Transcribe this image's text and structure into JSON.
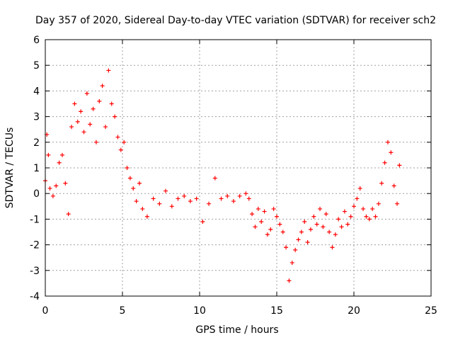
{
  "chart_data": {
    "type": "scatter",
    "title": "Day 357 of 2020, Sidereal Day-to-day VTEC variation (SDTVAR) for receiver sch2",
    "xlabel": "GPS time / hours",
    "ylabel": "SDTVAR / TECUs",
    "xlim": [
      0,
      25
    ],
    "ylim": [
      -4,
      6
    ],
    "xticks": [
      0,
      5,
      10,
      15,
      20,
      25
    ],
    "xtick_labels": [
      "0",
      "5",
      "10",
      "15",
      "20",
      "25"
    ],
    "yticks": [
      -4,
      -3,
      -2,
      -1,
      0,
      1,
      2,
      3,
      4,
      5,
      6
    ],
    "ytick_labels": [
      "-4",
      "-3",
      "-2",
      "-1",
      "0",
      "1",
      "2",
      "3",
      "4",
      "5",
      "6"
    ],
    "grid": true,
    "marker": "+",
    "color": "#ff0000",
    "series": [
      {
        "name": "SDTVAR",
        "x": [
          0.0,
          0.1,
          0.2,
          0.3,
          0.5,
          0.7,
          0.9,
          1.1,
          1.3,
          1.5,
          1.7,
          1.9,
          2.1,
          2.3,
          2.5,
          2.7,
          2.9,
          3.1,
          3.3,
          3.5,
          3.7,
          3.9,
          4.1,
          4.3,
          4.5,
          4.7,
          4.9,
          5.1,
          5.3,
          5.5,
          5.7,
          5.9,
          6.1,
          6.3,
          6.6,
          7.0,
          7.4,
          7.8,
          8.2,
          8.6,
          9.0,
          9.4,
          9.8,
          10.2,
          10.6,
          11.0,
          11.4,
          11.8,
          12.2,
          12.6,
          13.0,
          13.2,
          13.4,
          13.6,
          13.8,
          14.0,
          14.2,
          14.4,
          14.6,
          14.8,
          15.0,
          15.2,
          15.4,
          15.6,
          15.8,
          16.0,
          16.2,
          16.4,
          16.6,
          16.8,
          17.0,
          17.2,
          17.4,
          17.6,
          17.8,
          18.0,
          18.2,
          18.4,
          18.6,
          18.8,
          19.0,
          19.2,
          19.4,
          19.6,
          19.8,
          20.0,
          20.2,
          20.4,
          20.6,
          20.8,
          21.0,
          21.2,
          21.4,
          21.6,
          21.8,
          22.0,
          22.2,
          22.4,
          22.6,
          22.8,
          22.95
        ],
        "y": [
          0.5,
          2.3,
          1.5,
          0.2,
          -0.1,
          0.3,
          1.2,
          1.5,
          0.4,
          -0.8,
          2.6,
          3.5,
          2.8,
          3.2,
          2.4,
          3.9,
          2.7,
          3.3,
          2.0,
          3.6,
          4.2,
          2.6,
          4.8,
          3.5,
          3.0,
          2.2,
          1.7,
          2.0,
          1.0,
          0.6,
          0.2,
          -0.3,
          0.4,
          -0.6,
          -0.9,
          -0.2,
          -0.4,
          0.1,
          -0.5,
          -0.2,
          -0.1,
          -0.3,
          -0.2,
          -1.1,
          -0.4,
          0.6,
          -0.2,
          -0.1,
          -0.3,
          -0.1,
          0.0,
          -0.2,
          -0.8,
          -1.3,
          -0.6,
          -1.1,
          -0.7,
          -1.6,
          -1.4,
          -0.6,
          -0.9,
          -1.2,
          -1.5,
          -2.1,
          -3.4,
          -2.7,
          -2.2,
          -1.8,
          -1.5,
          -1.1,
          -1.9,
          -1.4,
          -0.9,
          -1.2,
          -0.6,
          -1.3,
          -0.8,
          -1.5,
          -2.1,
          -1.6,
          -1.0,
          -1.3,
          -0.7,
          -1.2,
          -0.9,
          -0.5,
          -0.2,
          0.2,
          -0.6,
          -0.9,
          -1.0,
          -0.6,
          -0.9,
          -0.4,
          0.4,
          1.2,
          2.0,
          1.6,
          0.3,
          -0.4,
          1.1
        ]
      }
    ]
  }
}
